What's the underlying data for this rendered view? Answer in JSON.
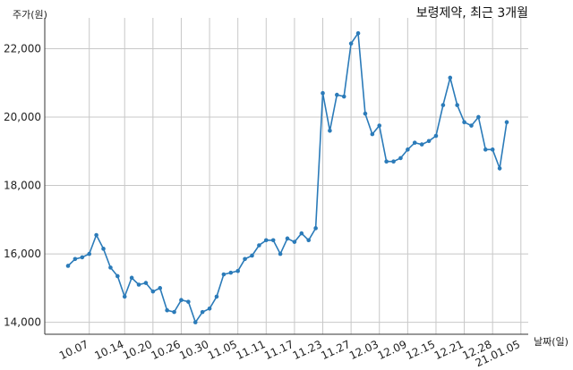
{
  "chart_data": {
    "type": "line",
    "title": "보령제약, 최근 3개월",
    "ylabel": "주가(원)",
    "xlabel": "날짜(일)",
    "ylim": [
      13650,
      22900
    ],
    "yticks": [
      14000,
      16000,
      18000,
      20000,
      22000
    ],
    "ytick_labels": [
      "14,000",
      "16,000",
      "18,000",
      "20,000",
      "22,000"
    ],
    "xticks": [
      "10.07",
      "10.14",
      "10.20",
      "10.26",
      "10.30",
      "11.05",
      "11.11",
      "11.17",
      "11.23",
      "11.27",
      "12.03",
      "12.09",
      "12.15",
      "12.21",
      "12.28",
      "21.01.05"
    ],
    "xtick_positions": [
      3,
      8,
      12,
      16,
      20,
      24,
      28,
      32,
      36,
      40,
      44,
      48,
      52,
      56,
      60,
      64
    ],
    "grid": true,
    "series": [
      {
        "name": "",
        "color": "#2b7bb9",
        "values": [
          15650,
          15850,
          15900,
          16000,
          16550,
          16150,
          15600,
          15350,
          14750,
          15300,
          15100,
          15150,
          14900,
          15000,
          14350,
          14300,
          14650,
          14600,
          14000,
          14300,
          14400,
          14750,
          15400,
          15450,
          15500,
          15850,
          15950,
          16250,
          16400,
          16400,
          16000,
          16450,
          16350,
          16600,
          16400,
          16750,
          20700,
          19600,
          20650,
          20600,
          22150,
          22450,
          20100,
          19500,
          19750,
          18700,
          18700,
          18800,
          19050,
          19250,
          19200,
          19300,
          19450,
          20350,
          21150,
          20350,
          19850,
          19750,
          20000,
          19050,
          19050,
          18500,
          19850
        ]
      }
    ]
  }
}
